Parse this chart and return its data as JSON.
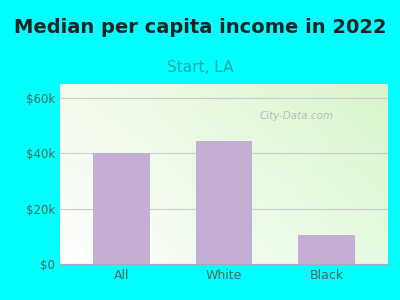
{
  "title": "Median per capita income in 2022",
  "subtitle": "Start, LA",
  "categories": [
    "All",
    "White",
    "Black"
  ],
  "values": [
    40000,
    44500,
    10500
  ],
  "bar_color": "#c4aed4",
  "background_color": "#00FFFF",
  "yticks": [
    0,
    20000,
    40000,
    60000
  ],
  "ytick_labels": [
    "$0",
    "$20k",
    "$40k",
    "$60k"
  ],
  "ylim": [
    0,
    65000
  ],
  "title_fontsize": 14,
  "subtitle_fontsize": 11,
  "title_color": "#222222",
  "subtitle_color": "#22AAAA",
  "tick_color": "#556655",
  "watermark": "City-Data.com",
  "plot_bg_colors": [
    "#ffffff",
    "#e0f2e0"
  ],
  "grid_color": "#cccccc"
}
